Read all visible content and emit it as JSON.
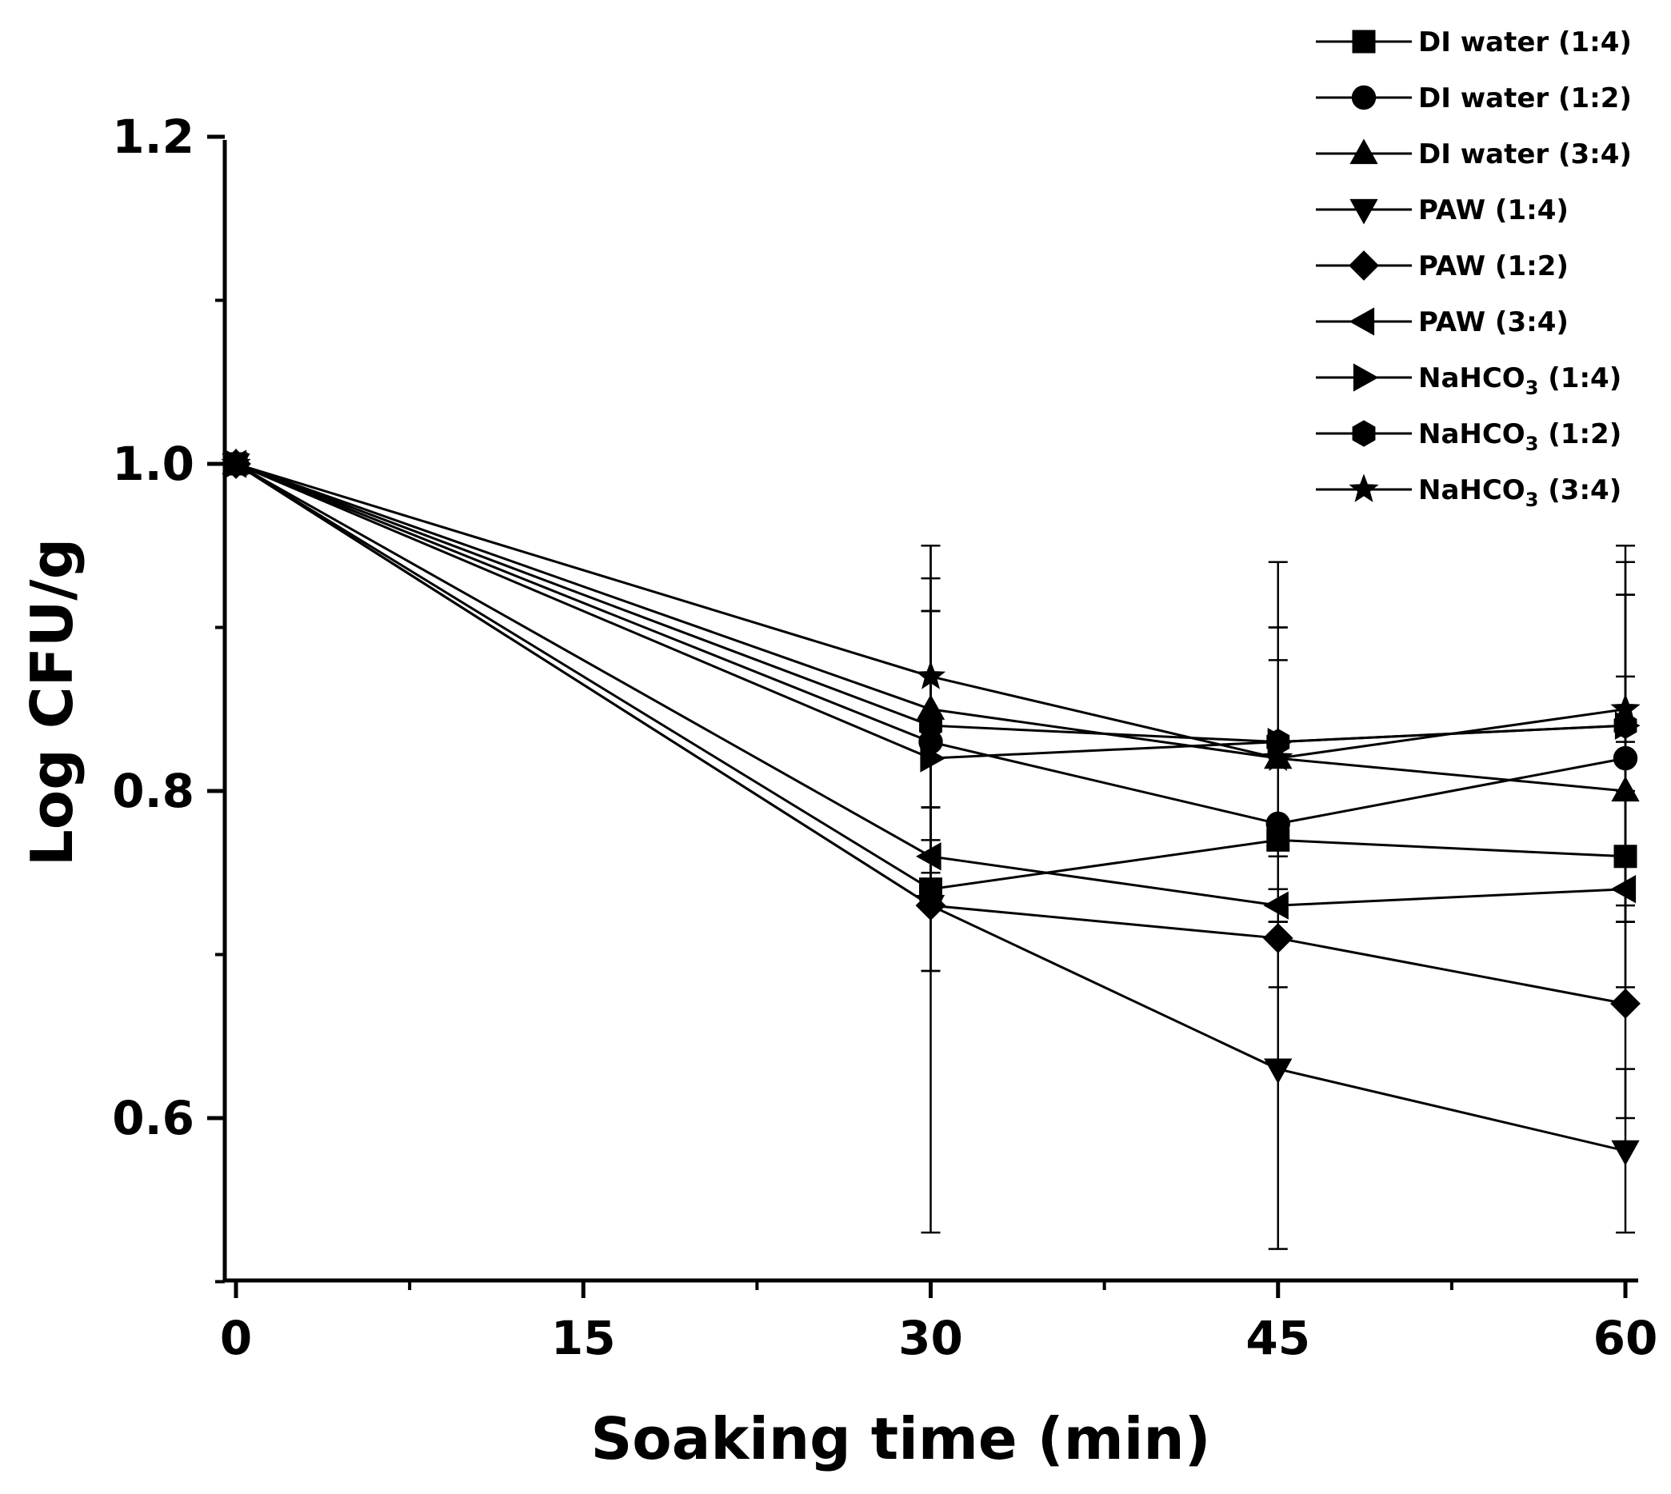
{
  "chart_data": {
    "type": "line",
    "title": "",
    "xlabel": "Soaking time (min)",
    "ylabel": "Log CFU/g",
    "x": [
      0,
      30,
      45,
      60
    ],
    "xticks": [
      0,
      15,
      30,
      45,
      60
    ],
    "xtick_labels": [
      "0",
      "15",
      "30",
      "45",
      "60"
    ],
    "yticks": [
      0.6,
      0.8,
      1.0,
      1.2
    ],
    "ytick_labels": [
      "0.6",
      "0.8",
      "1.0",
      "1.2"
    ],
    "xlim": [
      -0.5,
      61
    ],
    "ylim": [
      0.5,
      1.2
    ],
    "legend_position": "top-right",
    "series": [
      {
        "name": "DI water (1:4)",
        "label_main": "DI water (1:4)",
        "label_sub": "",
        "label_tail": "",
        "marker": "square",
        "values": [
          1.0,
          0.74,
          0.77,
          0.76
        ],
        "errors": [
          0.005,
          0.05,
          0.05,
          0.04
        ]
      },
      {
        "name": "DI water (1:2)",
        "label_main": "DI water (1:2)",
        "label_sub": "",
        "label_tail": "",
        "marker": "circle",
        "values": [
          1.0,
          0.83,
          0.78,
          0.82
        ],
        "errors": [
          0.005,
          0.08,
          0.05,
          0.1
        ]
      },
      {
        "name": "DI water (3:4)",
        "label_main": "DI water (3:4)",
        "label_sub": "",
        "label_tail": "",
        "marker": "triangle-up",
        "values": [
          1.0,
          0.85,
          0.82,
          0.8
        ],
        "errors": [
          0.005,
          0.06,
          0.08,
          0.12
        ]
      },
      {
        "name": "PAW (1:4)",
        "label_main": "PAW (1:4)",
        "label_sub": "",
        "label_tail": "",
        "marker": "triangle-down",
        "values": [
          1.0,
          0.73,
          0.63,
          0.58
        ],
        "errors": [
          0.005,
          0.2,
          0.11,
          0.05
        ]
      },
      {
        "name": "PAW (1:2)",
        "label_main": "PAW (1:2)",
        "label_sub": "",
        "label_tail": "",
        "marker": "diamond",
        "values": [
          1.0,
          0.73,
          0.71,
          0.67
        ],
        "errors": [
          0.005,
          0.04,
          0.03,
          0.07
        ]
      },
      {
        "name": "PAW (3:4)",
        "label_main": "PAW (3:4)",
        "label_sub": "",
        "label_tail": "",
        "marker": "triangle-left",
        "values": [
          1.0,
          0.76,
          0.73,
          0.74
        ],
        "errors": [
          0.005,
          0.03,
          0.01,
          0.02
        ]
      },
      {
        "name": "NaHCO3 (1:4)",
        "label_main": "NaHCO",
        "label_sub": "3",
        "label_tail": " (1:4)",
        "marker": "triangle-right",
        "values": [
          1.0,
          0.82,
          0.83,
          0.84
        ],
        "errors": [
          0.005,
          0.09,
          0.11,
          0.1
        ]
      },
      {
        "name": "NaHCO3 (1:2)",
        "label_main": "NaHCO",
        "label_sub": "3",
        "label_tail": " (1:2)",
        "marker": "hexagon",
        "values": [
          1.0,
          0.84,
          0.83,
          0.84
        ],
        "errors": [
          0.005,
          0.11,
          0.07,
          0.11
        ]
      },
      {
        "name": "NaHCO3 (3:4)",
        "label_main": "NaHCO",
        "label_sub": "3",
        "label_tail": " (3:4)",
        "marker": "star",
        "values": [
          1.0,
          0.87,
          0.82,
          0.85
        ],
        "errors": [
          0.005,
          0.08,
          0.06,
          0.02
        ]
      }
    ]
  }
}
